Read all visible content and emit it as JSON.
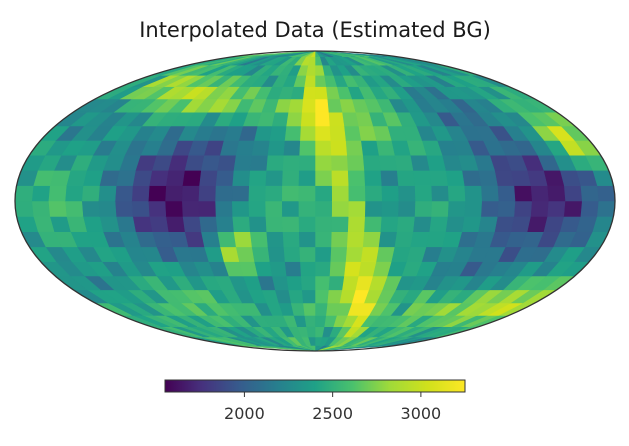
{
  "chart_data": {
    "type": "heatmap",
    "projection": "mollweide",
    "title": "Interpolated Data (Estimated BG)",
    "colormap": "viridis",
    "colorbar": {
      "orientation": "horizontal",
      "placement": "bottom-center",
      "vmin": 1550,
      "vmax": 3250,
      "ticks": [
        2000,
        2500,
        3000
      ],
      "tick_labels": [
        "2000",
        "2500",
        "3000"
      ]
    },
    "map_description_features": [
      {
        "kind": "high",
        "lon_deg": -165,
        "lat_deg": 30,
        "value": 3150
      },
      {
        "kind": "high",
        "lon_deg": 50,
        "lat_deg": -25,
        "value": 3200
      },
      {
        "kind": "low",
        "lon_deg": -130,
        "lat_deg": 5,
        "value": 1750
      },
      {
        "kind": "low",
        "lon_deg": 80,
        "lat_deg": 5,
        "value": 1750
      },
      {
        "kind": "ridge",
        "description": "bright band along meridian near lon -20, from north pole to south pole",
        "value": 3000
      },
      {
        "kind": "ridge",
        "description": "bright band in north-east from lon 0 to lon 150",
        "value": 3050
      },
      {
        "kind": "ridge",
        "description": "bright band along southern edge lon -170 to -90",
        "value": 3000
      }
    ]
  }
}
